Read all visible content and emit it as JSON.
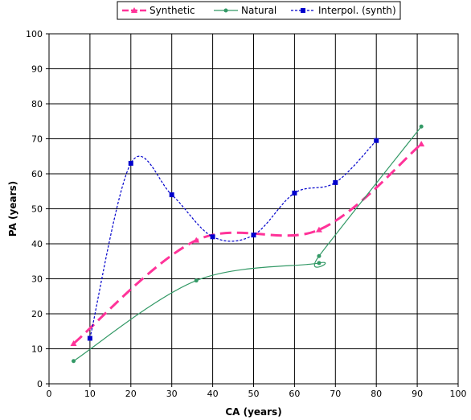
{
  "chart_data": {
    "type": "scatter",
    "xlabel": "CA (years)",
    "ylabel": "PA (years)",
    "xlim": [
      0,
      100
    ],
    "ylim": [
      0,
      100
    ],
    "x_ticks": [
      0,
      10,
      20,
      30,
      40,
      50,
      60,
      70,
      80,
      90,
      100
    ],
    "y_ticks": [
      0,
      10,
      20,
      30,
      40,
      50,
      60,
      70,
      80,
      90,
      100
    ],
    "grid": true,
    "legend_position": "top",
    "series": [
      {
        "name": "Synthetic",
        "color": "#ff3399",
        "marker": "triangle",
        "line": "dashed-smooth",
        "x": [
          6,
          36,
          66,
          91
        ],
        "y": [
          11.5,
          41,
          44,
          68.5
        ]
      },
      {
        "name": "Natural",
        "color": "#339966",
        "marker": "circle",
        "line": "solid-smooth",
        "x": [
          6,
          36,
          66,
          66,
          91
        ],
        "y": [
          6.5,
          29.5,
          34.5,
          36.5,
          73.5
        ]
      },
      {
        "name": "Interpol. (synth)",
        "color": "#0000cc",
        "marker": "square",
        "line": "dotted-smooth",
        "x": [
          10,
          20,
          30,
          40,
          50,
          60,
          70,
          80
        ],
        "y": [
          13,
          63,
          54,
          42,
          42.5,
          54.5,
          57.5,
          69.5
        ]
      }
    ]
  }
}
